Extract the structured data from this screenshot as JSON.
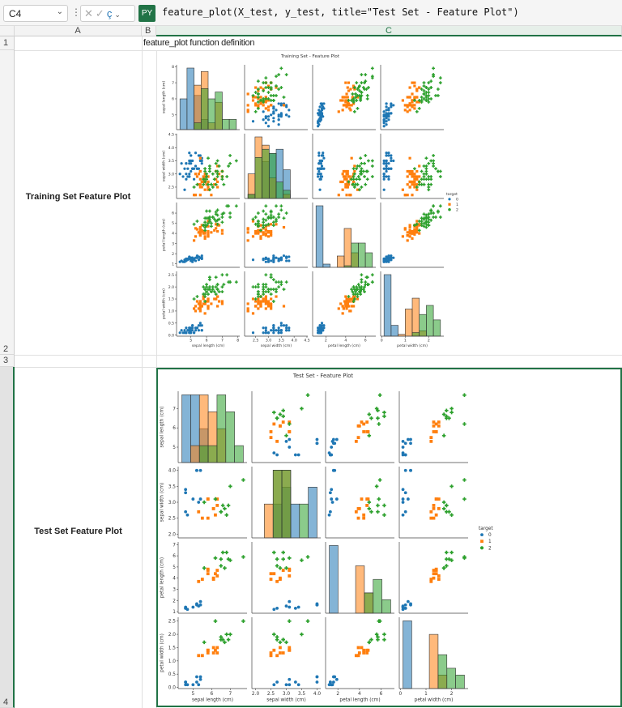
{
  "formula_bar": {
    "name_box": "C4",
    "py_badge": "PY",
    "formula": "feature_plot(X_test, y_test, title=\"Test Set - Feature Plot\")",
    "icons": [
      "cancel-icon",
      "enter-icon",
      "data-type-icon"
    ]
  },
  "columns": [
    "A",
    "B",
    "C"
  ],
  "rows": [
    "1",
    "2",
    "3",
    "4"
  ],
  "cells": {
    "C1": "feature_plot function definition",
    "A2": "Training Set Feature Plot",
    "A4": "Test Set Feature Plot"
  },
  "colors": {
    "class_0": "#1f77b4",
    "class_1": "#ff7f0e",
    "class_2": "#2ca02c",
    "accent": "#217346"
  },
  "plots": {
    "train": {
      "title": "Training Set - Feature Plot",
      "legend": {
        "title": "target",
        "labels": [
          "0",
          "1",
          "2"
        ]
      },
      "features": [
        {
          "label": "sepal length (cm)",
          "range": [
            4.3,
            7.9
          ],
          "yticks": [
            "5",
            "6",
            "7",
            "8"
          ],
          "xticks": [
            "5",
            "6",
            "7",
            "8"
          ]
        },
        {
          "label": "sepal width (cm)",
          "range": [
            2.2,
            4.4
          ],
          "yticks": [
            "2.5",
            "3.0",
            "3.5",
            "4.0",
            "4.5"
          ],
          "xticks": [
            "2.5",
            "3.0",
            "3.5",
            "4.0",
            "4.5"
          ]
        },
        {
          "label": "petal length (cm)",
          "range": [
            1.0,
            6.7
          ],
          "yticks": [
            "1",
            "2",
            "3",
            "4",
            "5",
            "6"
          ],
          "xticks": [
            "2",
            "4",
            "6"
          ]
        },
        {
          "label": "petal width (cm)",
          "range": [
            0.1,
            2.5
          ],
          "yticks": [
            "0.0",
            "0.5",
            "1.0",
            "1.5",
            "2.0",
            "2.5"
          ],
          "xticks": [
            "0",
            "1",
            "2"
          ]
        }
      ]
    },
    "test": {
      "title": "Test Set - Feature Plot",
      "legend": {
        "title": "target",
        "labels": [
          "0",
          "1",
          "2"
        ]
      },
      "features": [
        {
          "label": "sepal length (cm)",
          "range": [
            4.4,
            7.7
          ],
          "yticks": [
            "5",
            "6",
            "7"
          ],
          "xticks": [
            "5",
            "6",
            "7"
          ]
        },
        {
          "label": "sepal width (cm)",
          "range": [
            2.0,
            4.0
          ],
          "yticks": [
            "2.0",
            "2.5",
            "3.0",
            "3.5",
            "4.0"
          ],
          "xticks": [
            "2.0",
            "2.5",
            "3.0",
            "3.5",
            "4.0"
          ]
        },
        {
          "label": "petal length (cm)",
          "range": [
            1.2,
            6.9
          ],
          "yticks": [
            "1",
            "2",
            "3",
            "4",
            "5",
            "6",
            "7"
          ],
          "xticks": [
            "2",
            "4",
            "6"
          ]
        },
        {
          "label": "petal width (cm)",
          "range": [
            0.1,
            2.5
          ],
          "yticks": [
            "0.0",
            "0.5",
            "1.0",
            "1.5",
            "2.0",
            "2.5"
          ],
          "xticks": [
            "0",
            "1",
            "2"
          ]
        }
      ]
    }
  }
}
